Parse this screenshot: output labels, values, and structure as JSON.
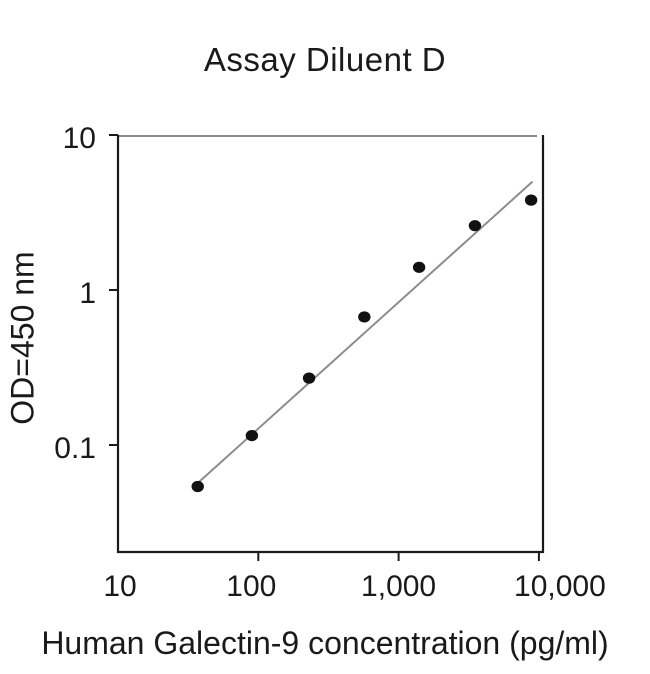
{
  "figure": {
    "title": "Assay Diluent D",
    "x_axis_label": "Human Galectin-9 concentration (pg/ml)",
    "y_axis_label": "OD=450 nm"
  },
  "chart_data": {
    "type": "scatter",
    "title": "Assay Diluent D",
    "xlabel": "Human Galectin-9 concentration (pg/ml)",
    "ylabel": "OD=450 nm",
    "x_scale": "log",
    "y_scale": "log",
    "xlim": [
      10,
      11000
    ],
    "ylim": [
      0.02,
      10
    ],
    "grid": false,
    "legend": "none",
    "x_ticks": [
      {
        "value": 10,
        "label": "10",
        "show_tick": false,
        "label_dx": 2
      },
      {
        "value": 100,
        "label": "100",
        "show_tick": true,
        "label_dx": -7
      },
      {
        "value": 1000,
        "label": "1,000",
        "show_tick": true,
        "label_dx": 0
      },
      {
        "value": 10000,
        "label": "10,000",
        "show_tick": true,
        "label_dx": 21
      }
    ],
    "y_ticks": [
      {
        "value": 10,
        "label": "10"
      },
      {
        "value": 1,
        "label": "1"
      },
      {
        "value": 0.1,
        "label": "0.1"
      }
    ],
    "points": [
      {
        "x": 37,
        "od": 0.054
      },
      {
        "x": 90,
        "od": 0.115
      },
      {
        "x": 230,
        "od": 0.27
      },
      {
        "x": 570,
        "od": 0.67
      },
      {
        "x": 1400,
        "od": 1.4
      },
      {
        "x": 3500,
        "od": 2.6
      },
      {
        "x": 8800,
        "od": 3.8
      }
    ],
    "fit_line": {
      "x1": 38,
      "y1": 0.058,
      "x2": 9000,
      "y2": 5.0
    },
    "colors": {
      "text": "#1a1a1a",
      "axis": "#1a1a1a",
      "box_top": "#8a8a8a",
      "fit_line": "#8c8c8c",
      "point": "#111111",
      "background": "#ffffff"
    }
  }
}
